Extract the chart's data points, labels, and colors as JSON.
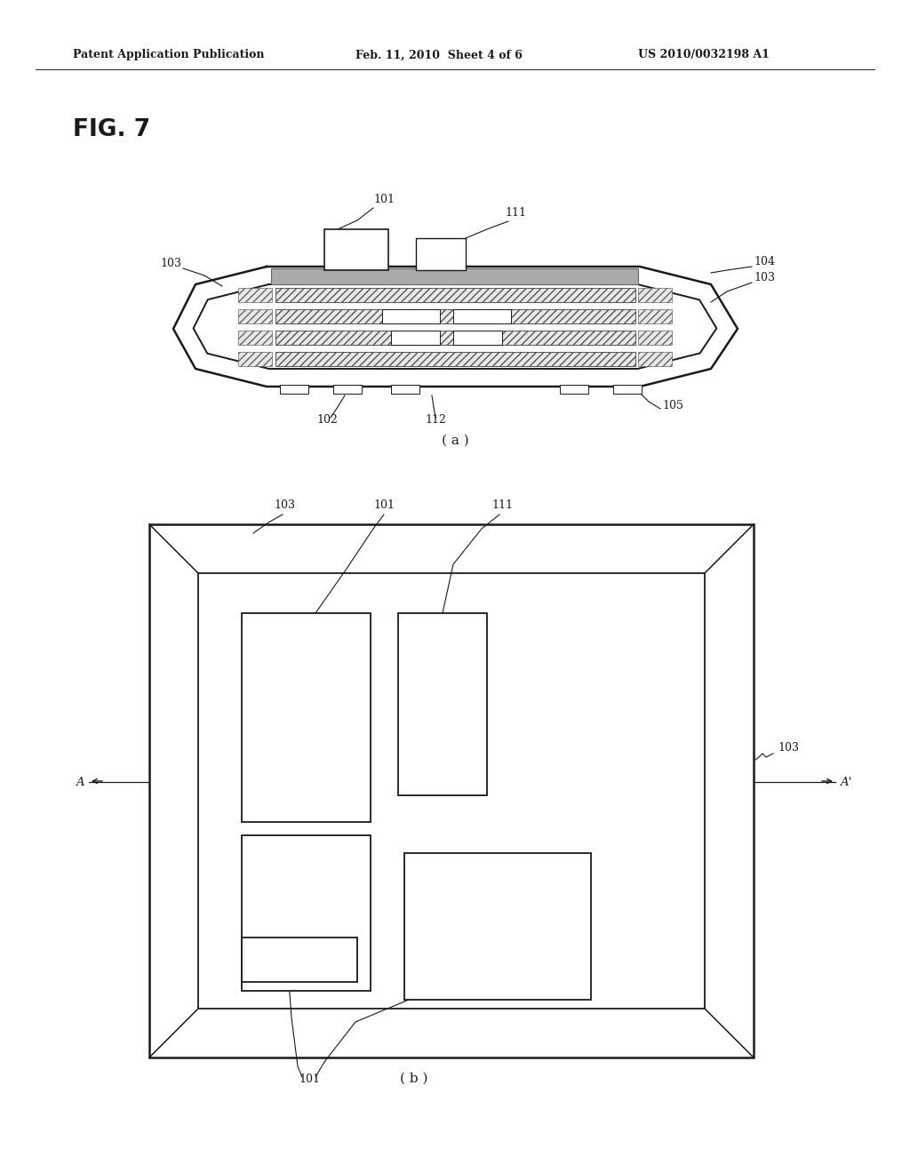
{
  "bg_color": "#ffffff",
  "header_left": "Patent Application Publication",
  "header_mid": "Feb. 11, 2010  Sheet 4 of 6",
  "header_right": "US 2010/0032198 A1",
  "fig_label": "FIG. 7",
  "label_a": "( a )",
  "label_b": "( b )",
  "line_color": "#1a1a1a"
}
